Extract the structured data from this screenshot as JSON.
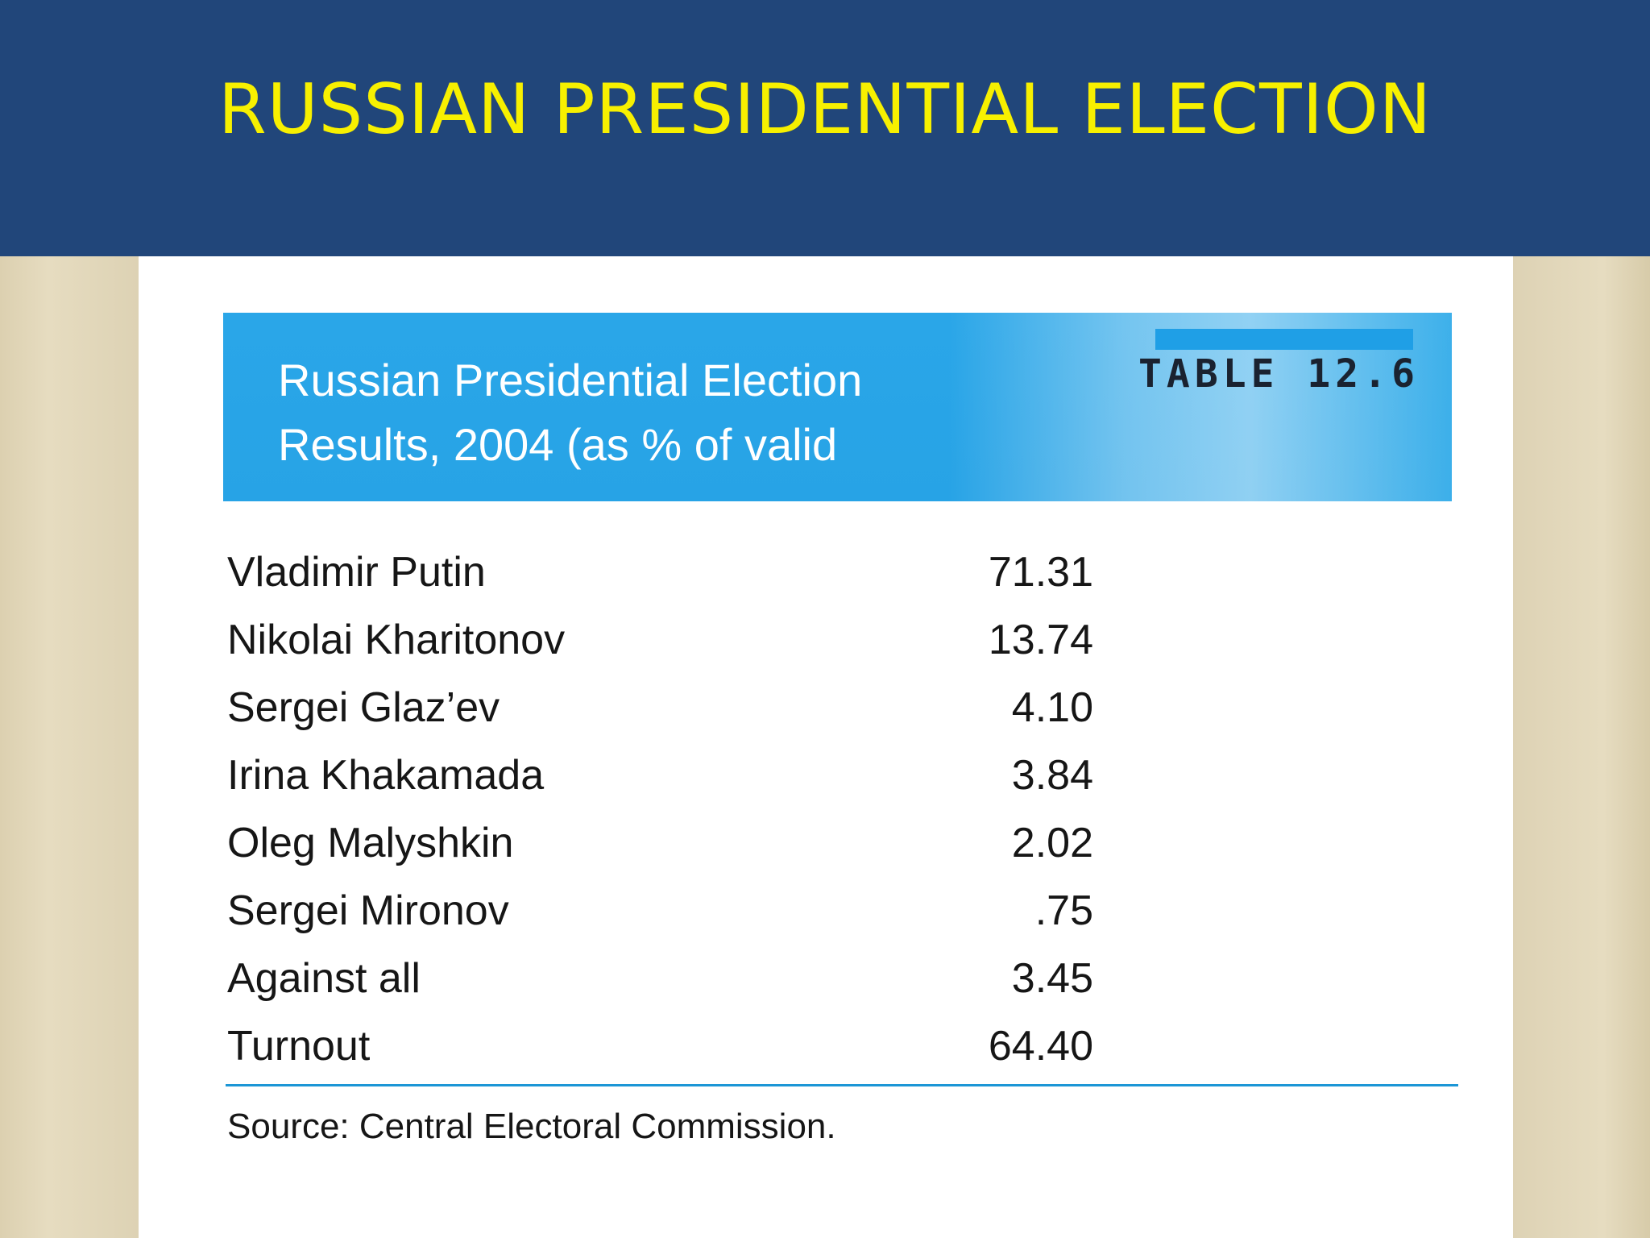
{
  "slide": {
    "title": "RUSSIAN PRESIDENTIAL ELECTION"
  },
  "table": {
    "title": "Russian Presidential Election\nResults, 2004 (as % of valid",
    "number": "TABLE 12.6",
    "rows": [
      {
        "label": "Vladimir Putin",
        "value": "71.31"
      },
      {
        "label": "Nikolai Kharitonov",
        "value": "13.74"
      },
      {
        "label": "Sergei Glaz’ev",
        "value": "4.10"
      },
      {
        "label": "Irina Khakamada",
        "value": "3.84"
      },
      {
        "label": "Oleg Malyshkin",
        "value": "2.02"
      },
      {
        "label": "Sergei Mironov",
        "value": ".75"
      },
      {
        "label": "Against all",
        "value": "3.45"
      },
      {
        "label": "Turnout",
        "value": "64.40"
      }
    ],
    "source": "Source: Central Electoral Commission."
  },
  "colors": {
    "title_bar": "#21467a",
    "title_text": "#f7f000",
    "table_header": "#2aa6e8",
    "rule": "#1c96d6"
  }
}
